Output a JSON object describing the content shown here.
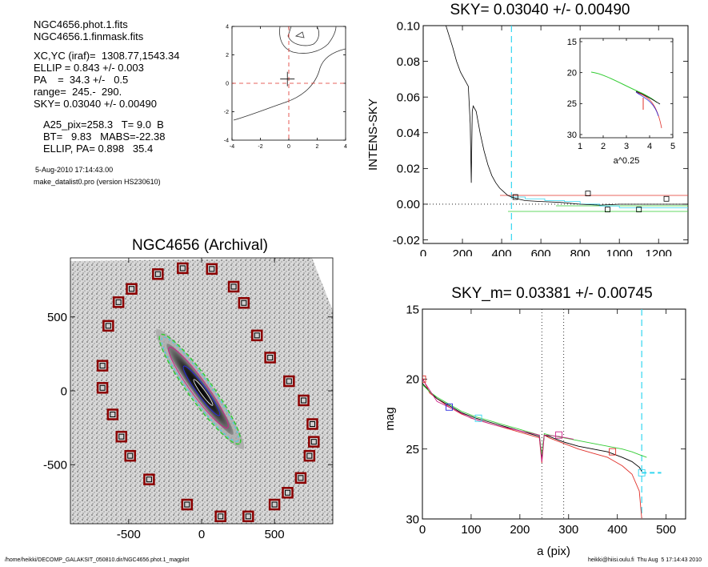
{
  "header": {
    "lines": [
      "NGC4656.phot.1.fits",
      "NGC4656.1.finmask.fits",
      "XC,YC (iraf)=  1308.77,1543.34",
      "ELLIP = 0.843 +/- 0.003",
      "PA    =  34.3 +/-   0.5",
      "range=  245.-  290.",
      "SKY= 0.03040 +/- 0.00490",
      "A25_pix=258.3   T= 9.0  B",
      "BT=   9.83   MABS=-22.38",
      "ELLIP, PA= 0.898   35.4"
    ],
    "date": "5-Aug-2010 17:14:43.00",
    "program": "make_datalist0.pro (version HS230610)"
  },
  "footer": {
    "path": "/home/heikki/DECOMP_GALAKSIT_050810.dir/NGC4656.phot.1_magplot",
    "user": "heikki@hiisi.oulu.fi  Thu Aug  5 17:14:43 2010"
  },
  "colors": {
    "red": "#e0302a",
    "green": "#33cc33",
    "cyan": "#33d6f0",
    "blue": "#2a2ae0",
    "magenta": "#cc2288",
    "box": "#8b0000"
  },
  "chart_data": [
    {
      "type": "line",
      "name": "centering-contour",
      "title": "",
      "xlim": [
        -4,
        4
      ],
      "ylim": [
        -4,
        4
      ],
      "xticks": [
        -4,
        -2,
        0,
        2,
        4
      ],
      "yticks": [
        -4,
        -2,
        0,
        2,
        4
      ],
      "center": [
        -0.1,
        0.3
      ]
    },
    {
      "type": "line",
      "name": "sky-profile",
      "title": "SKY= 0.03040 +/- 0.00490",
      "xlabel": "",
      "ylabel": "INTENS-SKY",
      "xlim": [
        0,
        1350
      ],
      "ylim": [
        -0.022,
        0.1
      ],
      "xticks": [
        0,
        200,
        400,
        600,
        800,
        1000,
        1200
      ],
      "yticks": [
        -0.02,
        0.0,
        0.02,
        0.04,
        0.06,
        0.08,
        0.1
      ],
      "ytick_labels": [
        "-0.02",
        "0.00",
        "0.02",
        "0.04",
        "0.06",
        "0.08",
        "0.10"
      ],
      "sky_cut": 450,
      "profile": {
        "x": [
          110,
          130,
          150,
          170,
          190,
          210,
          230,
          240,
          245,
          250,
          255,
          270,
          290,
          310,
          330,
          350,
          370,
          390,
          410,
          430,
          450,
          480,
          520,
          600,
          700,
          800,
          900,
          1000,
          1100,
          1200,
          1350
        ],
        "y": [
          0.102,
          0.095,
          0.088,
          0.08,
          0.074,
          0.07,
          0.066,
          0.045,
          0.012,
          0.052,
          0.055,
          0.052,
          0.04,
          0.03,
          0.022,
          0.016,
          0.012,
          0.009,
          0.007,
          0.005,
          0.004,
          0.003,
          0.002,
          0.0015,
          0.001,
          0.0,
          -0.0005,
          0.0,
          0.0,
          0.0,
          0.0
        ]
      },
      "sky_boxes": [
        {
          "x": 470,
          "y": 0.004
        },
        {
          "x": 840,
          "y": 0.006
        },
        {
          "x": 940,
          "y": -0.003
        },
        {
          "x": 1100,
          "y": -0.003
        },
        {
          "x": 1240,
          "y": 0.003
        }
      ],
      "inset": {
        "xlabel": "a^0.25",
        "xlim": [
          1,
          5
        ],
        "ylim": [
          15,
          30
        ],
        "xticks": [
          1,
          2,
          3,
          4,
          5
        ],
        "yticks": [
          15,
          20,
          25,
          30
        ]
      }
    },
    {
      "type": "scatter",
      "name": "archival-image",
      "title": "NGC4656 (Archival)",
      "xlim": [
        -900,
        900
      ],
      "ylim": [
        -900,
        900
      ],
      "xticks": [
        -500,
        0,
        500
      ],
      "yticks": [
        -500,
        0,
        500
      ],
      "sky_boxes": [
        [
          -130,
          830
        ],
        [
          70,
          825
        ],
        [
          -300,
          790
        ],
        [
          220,
          705
        ],
        [
          -480,
          690
        ],
        [
          -570,
          600
        ],
        [
          290,
          595
        ],
        [
          -640,
          440
        ],
        [
          380,
          375
        ],
        [
          -680,
          170
        ],
        [
          470,
          225
        ],
        [
          -680,
          20
        ],
        [
          600,
          65
        ],
        [
          700,
          -65
        ],
        [
          -610,
          -160
        ],
        [
          760,
          -225
        ],
        [
          -550,
          -310
        ],
        [
          770,
          -345
        ],
        [
          -490,
          -440
        ],
        [
          740,
          -440
        ],
        [
          680,
          -590
        ],
        [
          -360,
          -600
        ],
        [
          590,
          -690
        ],
        [
          -100,
          -770
        ],
        [
          500,
          -770
        ],
        [
          130,
          -850
        ],
        [
          320,
          -850
        ]
      ]
    },
    {
      "type": "line",
      "name": "mag-profile",
      "title": "SKY_m=  0.03381 +/- 0.00745",
      "xlabel": "a (pix)",
      "ylabel": "mag",
      "xlim": [
        0,
        540
      ],
      "ylim": [
        30,
        15
      ],
      "xticks": [
        0,
        100,
        200,
        300,
        400,
        500
      ],
      "yticks": [
        15,
        20,
        25,
        30
      ],
      "range_lines": [
        245,
        290
      ],
      "sky_cut": 450,
      "series": [
        {
          "color": "red",
          "x": [
            0,
            15,
            30,
            55,
            80,
            110,
            140,
            170,
            200,
            230,
            240,
            245,
            250,
            260,
            275,
            290,
            320,
            350,
            380,
            410,
            430,
            445,
            450
          ],
          "y": [
            19.9,
            21.0,
            21.4,
            22.0,
            22.5,
            22.9,
            23.2,
            23.5,
            23.8,
            24.1,
            24.2,
            26.0,
            24.0,
            24.2,
            24.4,
            24.6,
            25.0,
            25.3,
            25.6,
            26.2,
            26.8,
            28.0,
            30.0
          ]
        },
        {
          "color": "black",
          "x": [
            0,
            15,
            30,
            55,
            80,
            110,
            140,
            170,
            200,
            230,
            240,
            245,
            250,
            260,
            275,
            290,
            320,
            350,
            380,
            410,
            430,
            445,
            450
          ],
          "y": [
            20.3,
            20.9,
            21.4,
            21.9,
            22.4,
            22.8,
            23.1,
            23.4,
            23.7,
            24.0,
            24.1,
            25.6,
            24.0,
            24.1,
            24.3,
            24.5,
            24.8,
            25.0,
            25.2,
            25.6,
            25.9,
            26.3,
            26.6
          ]
        },
        {
          "color": "green",
          "x": [
            0,
            15,
            30,
            55,
            80,
            110,
            140,
            170,
            200,
            230,
            240,
            245,
            250,
            260,
            275,
            290,
            320,
            350,
            380,
            410,
            430,
            445,
            460
          ],
          "y": [
            20.4,
            20.9,
            21.3,
            21.8,
            22.3,
            22.7,
            23.0,
            23.3,
            23.6,
            23.9,
            24.0,
            25.4,
            23.9,
            24.0,
            24.1,
            24.2,
            24.4,
            24.6,
            24.8,
            25.0,
            25.2,
            25.4,
            25.6
          ]
        },
        {
          "color": "magenta",
          "x": [
            0,
            30,
            60,
            100,
            150,
            200,
            240,
            245,
            250,
            280,
            310
          ],
          "y": [
            20.0,
            21.6,
            22.1,
            22.8,
            23.3,
            23.7,
            24.0,
            25.9,
            24.0,
            24.1,
            24.3
          ]
        }
      ],
      "boxes": [
        {
          "x": 0,
          "y": 20.0,
          "c": "red"
        },
        {
          "x": 55,
          "y": 22.0,
          "c": "blue"
        },
        {
          "x": 115,
          "y": 22.8,
          "c": "cyan"
        },
        {
          "x": 280,
          "y": 24.0,
          "c": "magenta"
        },
        {
          "x": 390,
          "y": 25.2,
          "c": "red"
        },
        {
          "x": 450,
          "y": 26.7,
          "c": "cyan"
        }
      ],
      "sky_level": {
        "x": [
          450,
          490
        ],
        "y": 26.7
      }
    }
  ]
}
